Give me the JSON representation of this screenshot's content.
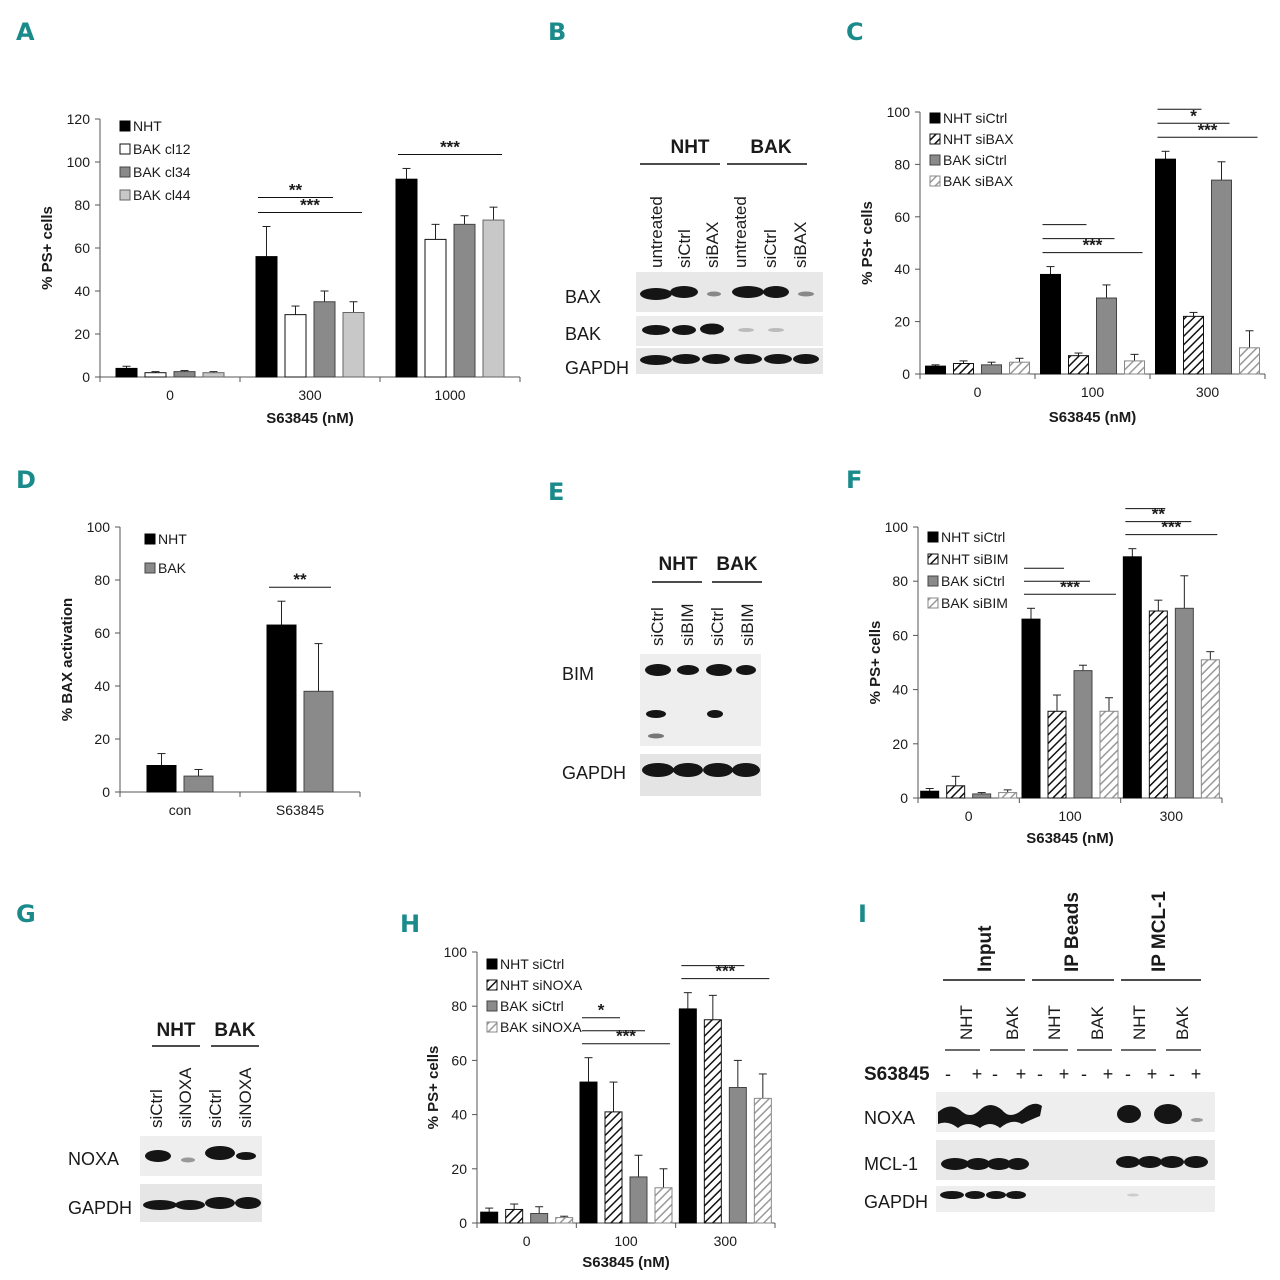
{
  "panels": {
    "A": {
      "letter": "A"
    },
    "B": {
      "letter": "B"
    },
    "C": {
      "letter": "C"
    },
    "D": {
      "letter": "D"
    },
    "E": {
      "letter": "E"
    },
    "F": {
      "letter": "F"
    },
    "G": {
      "letter": "G"
    },
    "H": {
      "letter": "H"
    },
    "I": {
      "letter": "I"
    }
  },
  "chart_data": [
    {
      "panel": "A",
      "type": "bar",
      "ylabel": "% PS+ cells",
      "xlabel": "S63845 (nM)",
      "ylim": [
        0,
        120
      ],
      "yticks": [
        0,
        20,
        40,
        60,
        80,
        100,
        120
      ],
      "categories": [
        "0",
        "300",
        "1000"
      ],
      "series": [
        {
          "name": "NHT",
          "fill": "solid-black",
          "values": [
            4,
            56,
            92
          ],
          "errors": [
            1,
            14,
            5
          ]
        },
        {
          "name": "BAK cl12",
          "fill": "white",
          "values": [
            2,
            29,
            64
          ],
          "errors": [
            0.5,
            4,
            7
          ]
        },
        {
          "name": "BAK cl34",
          "fill": "gray",
          "values": [
            2.5,
            35,
            71
          ],
          "errors": [
            0.5,
            5,
            4
          ]
        },
        {
          "name": "BAK cl44",
          "fill": "light-gray",
          "values": [
            2,
            30,
            73
          ],
          "errors": [
            0.5,
            5,
            6
          ]
        }
      ],
      "significance": [
        {
          "group": "300",
          "label": "**",
          "from": 0,
          "to": 2
        },
        {
          "group": "300",
          "label": "***",
          "from": 0,
          "to": 3
        },
        {
          "group": "1000",
          "label": "***",
          "from": 0,
          "to": 3
        }
      ],
      "legend": "top-left"
    },
    {
      "panel": "C",
      "type": "bar",
      "ylabel": "% PS+ cells",
      "xlabel": "S63845 (nM)",
      "ylim": [
        0,
        100
      ],
      "yticks": [
        0,
        20,
        40,
        60,
        80,
        100
      ],
      "categories": [
        "0",
        "100",
        "300"
      ],
      "series": [
        {
          "name": "NHT siCtrl",
          "fill": "solid-black",
          "values": [
            3,
            38,
            82
          ],
          "errors": [
            0.5,
            3,
            3
          ]
        },
        {
          "name": "NHT siBAX",
          "fill": "hatched",
          "values": [
            4,
            7,
            22
          ],
          "errors": [
            1,
            1,
            1.5
          ]
        },
        {
          "name": "BAK siCtrl",
          "fill": "gray",
          "values": [
            3.5,
            29,
            74
          ],
          "errors": [
            1,
            5,
            7
          ]
        },
        {
          "name": "BAK siBAX",
          "fill": "light-hatched",
          "values": [
            4.5,
            5,
            10
          ],
          "errors": [
            1.5,
            2.5,
            6.5
          ]
        }
      ],
      "significance": [
        {
          "group": "100",
          "label": "",
          "from": 0,
          "to": 1
        },
        {
          "group": "100",
          "label": "",
          "from": 0,
          "to": 2
        },
        {
          "group": "100",
          "label": "***",
          "from": 0,
          "to": 3
        },
        {
          "group": "300",
          "label": "",
          "from": 0,
          "to": 1
        },
        {
          "group": "300",
          "label": "*",
          "from": 0,
          "to": 2
        },
        {
          "group": "300",
          "label": "***",
          "from": 0,
          "to": 3
        }
      ],
      "legend": "top-left"
    },
    {
      "panel": "D",
      "type": "bar",
      "ylabel": "% BAX activation",
      "xlabel": "",
      "ylim": [
        0,
        100
      ],
      "yticks": [
        0,
        20,
        40,
        60,
        80,
        100
      ],
      "categories": [
        "con",
        "S63845"
      ],
      "series": [
        {
          "name": "NHT",
          "fill": "solid-black",
          "values": [
            10,
            63
          ],
          "errors": [
            4.5,
            9
          ]
        },
        {
          "name": "BAK",
          "fill": "gray",
          "values": [
            6,
            38
          ],
          "errors": [
            2.5,
            18
          ]
        }
      ],
      "significance": [
        {
          "group": "S63845",
          "label": "**",
          "from": 0,
          "to": 1
        }
      ],
      "legend": "top-left"
    },
    {
      "panel": "F",
      "type": "bar",
      "ylabel": "% PS+ cells",
      "xlabel": "S63845 (nM)",
      "ylim": [
        0,
        100
      ],
      "yticks": [
        0,
        20,
        40,
        60,
        80,
        100
      ],
      "categories": [
        "0",
        "100",
        "300"
      ],
      "series": [
        {
          "name": "NHT siCtrl",
          "fill": "solid-black",
          "values": [
            2.5,
            66,
            89
          ],
          "errors": [
            1,
            4,
            3
          ]
        },
        {
          "name": "NHT siBIM",
          "fill": "hatched",
          "values": [
            4.5,
            32,
            69
          ],
          "errors": [
            3.5,
            6,
            4
          ]
        },
        {
          "name": "BAK siCtrl",
          "fill": "gray",
          "values": [
            1.5,
            47,
            70
          ],
          "errors": [
            0.5,
            2,
            12
          ]
        },
        {
          "name": "BAK siBIM",
          "fill": "light-hatched",
          "values": [
            2,
            32,
            51
          ],
          "errors": [
            1,
            5,
            3
          ]
        }
      ],
      "significance": [
        {
          "group": "100",
          "label": "",
          "from": 0,
          "to": 1
        },
        {
          "group": "100",
          "label": "",
          "from": 0,
          "to": 2
        },
        {
          "group": "100",
          "label": "***",
          "from": 0,
          "to": 3
        },
        {
          "group": "300",
          "label": "",
          "from": 0,
          "to": 1
        },
        {
          "group": "300",
          "label": "**",
          "from": 0,
          "to": 2
        },
        {
          "group": "300",
          "label": "***",
          "from": 0,
          "to": 3
        }
      ],
      "legend": "top-left"
    },
    {
      "panel": "H",
      "type": "bar",
      "ylabel": "% PS+ cells",
      "xlabel": "S63845 (nM)",
      "ylim": [
        0,
        100
      ],
      "yticks": [
        0,
        20,
        40,
        60,
        80,
        100
      ],
      "categories": [
        "0",
        "100",
        "300"
      ],
      "series": [
        {
          "name": "NHT siCtrl",
          "fill": "solid-black",
          "values": [
            4,
            52,
            79
          ],
          "errors": [
            1.5,
            9,
            6
          ]
        },
        {
          "name": "NHT siNOXA",
          "fill": "hatched",
          "values": [
            5,
            41,
            75
          ],
          "errors": [
            2,
            11,
            9
          ]
        },
        {
          "name": "BAK siCtrl",
          "fill": "gray",
          "values": [
            3.5,
            17,
            50
          ],
          "errors": [
            2.5,
            8,
            10
          ]
        },
        {
          "name": "BAK siNOXA",
          "fill": "light-hatched",
          "values": [
            2,
            13,
            46
          ],
          "errors": [
            0.5,
            7,
            9
          ]
        }
      ],
      "significance": [
        {
          "group": "100",
          "label": "*",
          "from": 0,
          "to": 1
        },
        {
          "group": "100",
          "label": "",
          "from": 0,
          "to": 2
        },
        {
          "group": "100",
          "label": "***",
          "from": 0,
          "to": 3
        },
        {
          "group": "300",
          "label": "",
          "from": 0,
          "to": 2
        },
        {
          "group": "300",
          "label": "***",
          "from": 0,
          "to": 3
        }
      ],
      "legend": "top-left"
    }
  ],
  "blots": {
    "B": {
      "groups": [
        "NHT",
        "BAK"
      ],
      "lanes": [
        "untreated",
        "siCtrl",
        "siBAX",
        "untreated",
        "siCtrl",
        "siBAX"
      ],
      "rows": [
        "BAX",
        "BAK",
        "GAPDH"
      ]
    },
    "E": {
      "groups": [
        "NHT",
        "BAK"
      ],
      "lanes": [
        "siCtrl",
        "siBIM",
        "siCtrl",
        "siBIM"
      ],
      "rows": [
        "BIM",
        "GAPDH"
      ]
    },
    "G": {
      "groups": [
        "NHT",
        "BAK"
      ],
      "lanes": [
        "siCtrl",
        "siNOXA",
        "siCtrl",
        "siNOXA"
      ],
      "rows": [
        "NOXA",
        "GAPDH"
      ]
    },
    "I": {
      "groups": [
        "Input",
        "IP Beads",
        "IP MCL-1"
      ],
      "subgroups": [
        "NHT",
        "BAK",
        "NHT",
        "BAK",
        "NHT",
        "BAK"
      ],
      "treatment_label": "S63845",
      "signs": [
        "-",
        "+",
        "-",
        "+",
        "-",
        "+",
        "-",
        "+",
        "-",
        "+",
        "-",
        "+"
      ],
      "rows": [
        "NOXA",
        "MCL-1",
        "GAPDH"
      ]
    }
  }
}
